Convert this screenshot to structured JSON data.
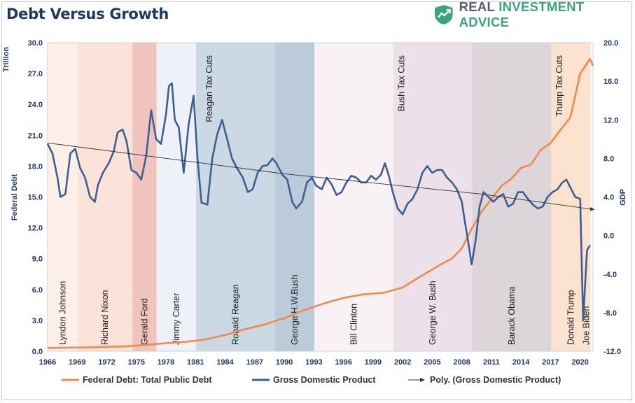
{
  "title": "Debt Versus Growth",
  "brand": {
    "part1": "REAL ",
    "part2": "INVESTMENT ADVICE",
    "icon": "shield-chart-icon",
    "color": "#3aa57a"
  },
  "colors": {
    "debt": "#f0894a",
    "gdp": "#3e5f93",
    "trend": "#333333",
    "axis": "#1f3864"
  },
  "chart_data": {
    "type": "line",
    "title": "Debt Versus Growth",
    "xlim": [
      1966,
      2021.3
    ],
    "x_ticks": [
      "1966",
      "1969",
      "1972",
      "1975",
      "1978",
      "1981",
      "1984",
      "1987",
      "1990",
      "1993",
      "1996",
      "1999",
      "2002",
      "2005",
      "2008",
      "2011",
      "2014",
      "2017",
      "2020"
    ],
    "left_axis": {
      "label": "Federal Debt",
      "unit_label": "Trillion",
      "min": 0,
      "max": 30,
      "ticks": [
        "0.0",
        "3.0",
        "6.0",
        "9.0",
        "12.0",
        "15.0",
        "18.0",
        "21.0",
        "24.0",
        "27.0",
        "30.0"
      ]
    },
    "right_axis": {
      "label": "GDP",
      "min": -12,
      "max": 20,
      "ticks": [
        "-12.0",
        "-8.0",
        "-4.0",
        "0.0",
        "4.0",
        "8.0",
        "12.0",
        "16.0",
        "20.0"
      ]
    },
    "presidencies": [
      {
        "name": "Lyndon Johnson",
        "start": 1966,
        "end": 1969.05,
        "color": "#fdf0e8"
      },
      {
        "name": "Richard Nixon",
        "start": 1969.05,
        "end": 1974.6,
        "color": "#fbe3da"
      },
      {
        "name": "Gerald Ford",
        "start": 1974.6,
        "end": 1977.05,
        "color": "#f1c3bd"
      },
      {
        "name": "Jimmy Carter",
        "start": 1977.05,
        "end": 1981.05,
        "color": "#eef2f8"
      },
      {
        "name": "Ronald Reagan",
        "start": 1981.05,
        "end": 1989.05,
        "color": "#cbd9e5"
      },
      {
        "name": "George H.W.Bush",
        "start": 1989.05,
        "end": 1993.05,
        "color": "#bccbda"
      },
      {
        "name": "Bill Clinton",
        "start": 1993.05,
        "end": 2001.05,
        "color": "#f8f2f5"
      },
      {
        "name": "George W. Bush",
        "start": 2001.05,
        "end": 2009.05,
        "color": "#ede1e9"
      },
      {
        "name": "Barack Obama",
        "start": 2009.05,
        "end": 2017.05,
        "color": "#dcd6da"
      },
      {
        "name": "Donald Trump",
        "start": 2017.05,
        "end": 2021.05,
        "color": "#fbe2cf"
      },
      {
        "name": "Joe Biden",
        "start": 2021.05,
        "end": 2021.3,
        "color": "#ffffff"
      }
    ],
    "events": [
      {
        "name": "Reagan Tax Cuts",
        "x": 1982.4
      },
      {
        "name": "Bush Tax Cuts",
        "x": 2001.9
      },
      {
        "name": "Trump Tax Cuts",
        "x": 2017.9
      }
    ],
    "series": [
      {
        "name": "Federal Debt: Total Public Debt",
        "axis": "left",
        "points": [
          [
            1966,
            0.32
          ],
          [
            1970,
            0.37
          ],
          [
            1974,
            0.48
          ],
          [
            1976,
            0.62
          ],
          [
            1978,
            0.78
          ],
          [
            1980,
            0.91
          ],
          [
            1982,
            1.14
          ],
          [
            1984,
            1.57
          ],
          [
            1986,
            2.13
          ],
          [
            1988,
            2.6
          ],
          [
            1990,
            3.21
          ],
          [
            1992,
            4.0
          ],
          [
            1994,
            4.64
          ],
          [
            1996,
            5.18
          ],
          [
            1998,
            5.53
          ],
          [
            2000,
            5.67
          ],
          [
            2002,
            6.2
          ],
          [
            2004,
            7.38
          ],
          [
            2006,
            8.51
          ],
          [
            2007,
            9.01
          ],
          [
            2008,
            10.0
          ],
          [
            2009,
            11.9
          ],
          [
            2010,
            13.56
          ],
          [
            2011,
            14.79
          ],
          [
            2012,
            16.07
          ],
          [
            2013,
            16.74
          ],
          [
            2014,
            17.82
          ],
          [
            2015,
            18.15
          ],
          [
            2016,
            19.57
          ],
          [
            2017,
            20.24
          ],
          [
            2018,
            21.52
          ],
          [
            2019,
            22.72
          ],
          [
            2020,
            27.0
          ],
          [
            2021,
            28.43
          ],
          [
            2021.3,
            27.75
          ]
        ]
      },
      {
        "name": "Gross Domestic Product",
        "axis": "right",
        "points": [
          [
            1966,
            9.5
          ],
          [
            1966.5,
            8.5
          ],
          [
            1967,
            6.0
          ],
          [
            1967.3,
            4.0
          ],
          [
            1967.8,
            4.3
          ],
          [
            1968.3,
            8.5
          ],
          [
            1968.8,
            9.0
          ],
          [
            1969.3,
            7.0
          ],
          [
            1969.8,
            6.0
          ],
          [
            1970.3,
            4.0
          ],
          [
            1970.8,
            3.5
          ],
          [
            1971.1,
            5.2
          ],
          [
            1971.6,
            6.5
          ],
          [
            1972.2,
            7.5
          ],
          [
            1972.7,
            8.7
          ],
          [
            1973.1,
            10.7
          ],
          [
            1973.6,
            11.0
          ],
          [
            1974.0,
            9.8
          ],
          [
            1974.5,
            6.8
          ],
          [
            1975.0,
            6.5
          ],
          [
            1975.5,
            5.8
          ],
          [
            1976.0,
            8.3
          ],
          [
            1976.5,
            13.0
          ],
          [
            1977.0,
            10.0
          ],
          [
            1977.5,
            9.5
          ],
          [
            1978.0,
            12.5
          ],
          [
            1978.3,
            15.5
          ],
          [
            1978.6,
            15.8
          ],
          [
            1978.9,
            12.0
          ],
          [
            1979.3,
            11.2
          ],
          [
            1979.8,
            6.5
          ],
          [
            1980.3,
            11.5
          ],
          [
            1980.8,
            14.5
          ],
          [
            1981.2,
            8.0
          ],
          [
            1981.6,
            3.4
          ],
          [
            1982.2,
            3.2
          ],
          [
            1982.7,
            8.0
          ],
          [
            1983.2,
            10.5
          ],
          [
            1983.7,
            12.0
          ],
          [
            1984.2,
            10.0
          ],
          [
            1984.7,
            8.0
          ],
          [
            1985.2,
            7.0
          ],
          [
            1985.8,
            6.0
          ],
          [
            1986.3,
            4.5
          ],
          [
            1986.8,
            4.8
          ],
          [
            1987.3,
            6.5
          ],
          [
            1987.8,
            7.2
          ],
          [
            1988.3,
            7.3
          ],
          [
            1988.8,
            8.0
          ],
          [
            1989.2,
            7.5
          ],
          [
            1989.8,
            6.3
          ],
          [
            1990.3,
            5.8
          ],
          [
            1990.8,
            3.5
          ],
          [
            1991.2,
            2.8
          ],
          [
            1991.8,
            3.5
          ],
          [
            1992.3,
            5.5
          ],
          [
            1992.8,
            6.0
          ],
          [
            1993.2,
            5.2
          ],
          [
            1993.8,
            4.8
          ],
          [
            1994.3,
            6.0
          ],
          [
            1994.8,
            5.3
          ],
          [
            1995.3,
            4.2
          ],
          [
            1995.8,
            4.5
          ],
          [
            1996.3,
            5.5
          ],
          [
            1996.8,
            6.2
          ],
          [
            1997.3,
            6.0
          ],
          [
            1997.8,
            5.5
          ],
          [
            1998.3,
            5.5
          ],
          [
            1998.8,
            6.2
          ],
          [
            1999.3,
            5.8
          ],
          [
            1999.8,
            6.3
          ],
          [
            2000.2,
            7.5
          ],
          [
            2000.6,
            6.2
          ],
          [
            2001.0,
            4.5
          ],
          [
            2001.5,
            2.8
          ],
          [
            2002.0,
            2.2
          ],
          [
            2002.5,
            3.3
          ],
          [
            2003.0,
            3.8
          ],
          [
            2003.5,
            4.8
          ],
          [
            2004.0,
            6.5
          ],
          [
            2004.5,
            7.2
          ],
          [
            2005.0,
            6.5
          ],
          [
            2005.5,
            6.8
          ],
          [
            2006.0,
            6.8
          ],
          [
            2006.5,
            6.0
          ],
          [
            2007.0,
            5.5
          ],
          [
            2007.5,
            4.8
          ],
          [
            2008.0,
            3.5
          ],
          [
            2008.3,
            1.5
          ],
          [
            2008.7,
            -1.0
          ],
          [
            2009.0,
            -3.0
          ],
          [
            2009.4,
            -0.5
          ],
          [
            2009.8,
            3.0
          ],
          [
            2010.2,
            4.5
          ],
          [
            2010.7,
            4.0
          ],
          [
            2011.2,
            3.5
          ],
          [
            2011.7,
            4.0
          ],
          [
            2012.2,
            4.3
          ],
          [
            2012.7,
            3.0
          ],
          [
            2013.2,
            3.3
          ],
          [
            2013.7,
            4.5
          ],
          [
            2014.2,
            4.5
          ],
          [
            2014.7,
            3.8
          ],
          [
            2015.2,
            3.2
          ],
          [
            2015.7,
            2.8
          ],
          [
            2016.2,
            3.0
          ],
          [
            2016.7,
            4.0
          ],
          [
            2017.2,
            4.5
          ],
          [
            2017.7,
            4.8
          ],
          [
            2018.2,
            5.5
          ],
          [
            2018.6,
            5.8
          ],
          [
            2019.0,
            5.0
          ],
          [
            2019.5,
            4.0
          ],
          [
            2020.0,
            3.8
          ],
          [
            2020.3,
            -8.8
          ],
          [
            2020.7,
            -1.5
          ],
          [
            2021.0,
            -1.0
          ]
        ]
      }
    ],
    "trendline": {
      "name": "Poly. (Gross Domestic Product)",
      "axis": "right",
      "points": [
        [
          1966,
          9.6
        ],
        [
          1990,
          6.4
        ],
        [
          2010,
          4.3
        ],
        [
          2021.4,
          2.7
        ]
      ]
    },
    "legend": [
      "Federal Debt: Total Public Debt",
      "Gross Domestic Product",
      "Poly. (Gross Domestic Product)"
    ]
  }
}
